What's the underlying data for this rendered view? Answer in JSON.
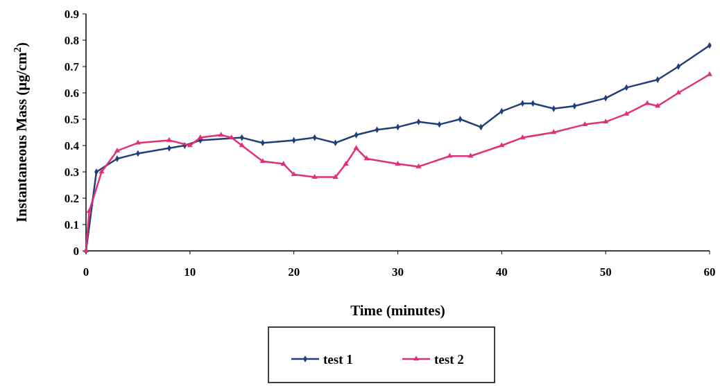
{
  "chart_data": {
    "type": "line",
    "xlabel": "Time (minutes)",
    "ylabel": "Instantaneous Mass (µg/cm$^{2}$)",
    "xlim": [
      0,
      60
    ],
    "xticks": [
      0,
      10,
      20,
      30,
      40,
      50,
      60
    ],
    "ylim": [
      0,
      0.9
    ],
    "yticks": [
      0,
      0.1,
      0.2,
      0.3,
      0.4,
      0.5,
      0.6,
      0.7,
      0.8,
      0.9
    ],
    "grid": false,
    "legend": "bottom",
    "line_style": "solid",
    "series": [
      {
        "name": "test 1",
        "color": "#1f3f7a",
        "marker": "diamond",
        "x": [
          0,
          1,
          3,
          5,
          8,
          9.5,
          11,
          15,
          17,
          20,
          22,
          24,
          26,
          28,
          30,
          32,
          34,
          36,
          38,
          40,
          42,
          43,
          45,
          47,
          50,
          52,
          55,
          57,
          60
        ],
        "values": [
          0,
          0.3,
          0.35,
          0.37,
          0.39,
          0.4,
          0.42,
          0.43,
          0.41,
          0.42,
          0.43,
          0.41,
          0.44,
          0.46,
          0.47,
          0.49,
          0.48,
          0.5,
          0.47,
          0.53,
          0.56,
          0.56,
          0.54,
          0.55,
          0.58,
          0.62,
          0.65,
          0.7,
          0.78
        ]
      },
      {
        "name": "test 2",
        "color": "#e0307a",
        "marker": "triangle",
        "x": [
          0,
          0.3,
          1.5,
          3,
          5,
          8,
          10,
          11,
          13,
          14,
          15,
          17,
          19,
          20,
          22,
          24,
          25,
          26,
          27,
          30,
          32,
          35,
          37,
          40,
          42,
          45,
          48,
          50,
          52,
          54,
          55,
          57,
          60
        ],
        "values": [
          0,
          0.15,
          0.3,
          0.38,
          0.41,
          0.42,
          0.4,
          0.43,
          0.44,
          0.43,
          0.4,
          0.34,
          0.33,
          0.29,
          0.28,
          0.28,
          0.33,
          0.39,
          0.35,
          0.33,
          0.32,
          0.36,
          0.36,
          0.4,
          0.43,
          0.45,
          0.48,
          0.49,
          0.52,
          0.56,
          0.55,
          0.6,
          0.67
        ]
      }
    ]
  }
}
